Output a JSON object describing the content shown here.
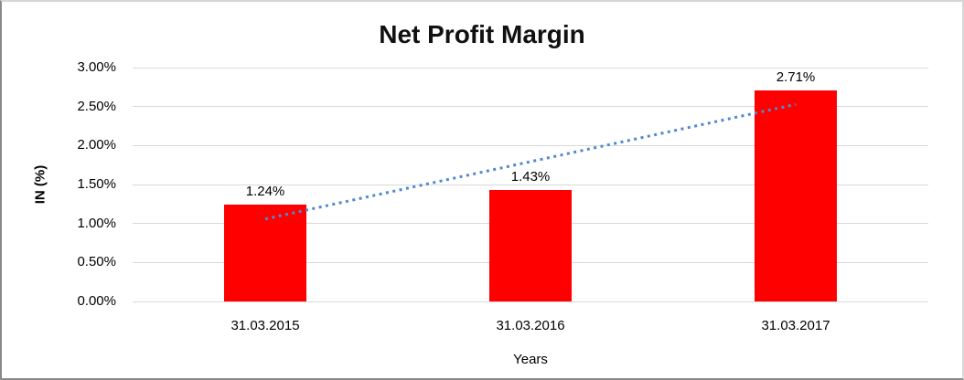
{
  "chart_data": {
    "type": "bar",
    "title": "Net Profit Margin",
    "categories": [
      "31.03.2015",
      "31.03.2016",
      "31.03.2017"
    ],
    "values": [
      1.24,
      1.43,
      2.71
    ],
    "data_labels": [
      "1.24%",
      "1.43%",
      "2.71%"
    ],
    "xlabel": "Years",
    "ylabel": "IN (%)",
    "ylim": [
      0,
      3.0
    ],
    "ytick_step": 0.5,
    "ytick_labels": [
      "0.00%",
      "0.50%",
      "1.00%",
      "1.50%",
      "2.00%",
      "2.50%",
      "3.00%"
    ],
    "grid": true,
    "legend": "none",
    "bar_color": "#FF0000",
    "gridline_color": "#D9D9D9",
    "trendline": {
      "type": "linear",
      "style": "dotted",
      "color": "#5089CE"
    }
  }
}
